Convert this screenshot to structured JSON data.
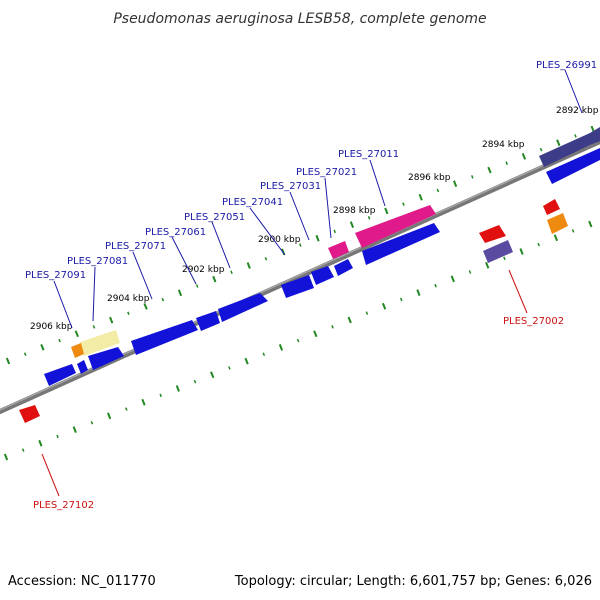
{
  "title": "Pseudomonas aeruginosa LESB58, complete genome",
  "footer": {
    "accession": "Accession: NC_011770",
    "topology": "Topology: circular; Length: 6,601,757 bp; Genes: 6,026"
  },
  "tick_labels": [
    "2892 kbp",
    "2894 kbp",
    "2896 kbp",
    "2898 kbp",
    "2900 kbp",
    "2902 kbp",
    "2904 kbp",
    "2906 kbp"
  ],
  "gene_labels": {
    "forward": [
      "PLES_26991",
      "PLES_27011",
      "PLES_27021",
      "PLES_27031",
      "PLES_27041",
      "PLES_27051",
      "PLES_27061",
      "PLES_27071",
      "PLES_27081",
      "PLES_27091"
    ],
    "reverse": [
      "PLES_27002",
      "PLES_27102"
    ]
  },
  "colors": {
    "backbone": "#777777",
    "tick": "#228822",
    "forward_label": "#1a1aa6",
    "reverse_label": "#cc1111",
    "cds_blue": "#1212d8",
    "pink": "#e01a8a",
    "dark_purple": "#3c3c88",
    "purple": "#5a4aa0",
    "red": "#e01010",
    "orange": "#ee8a10",
    "pale_yellow": "#f3eca6"
  }
}
